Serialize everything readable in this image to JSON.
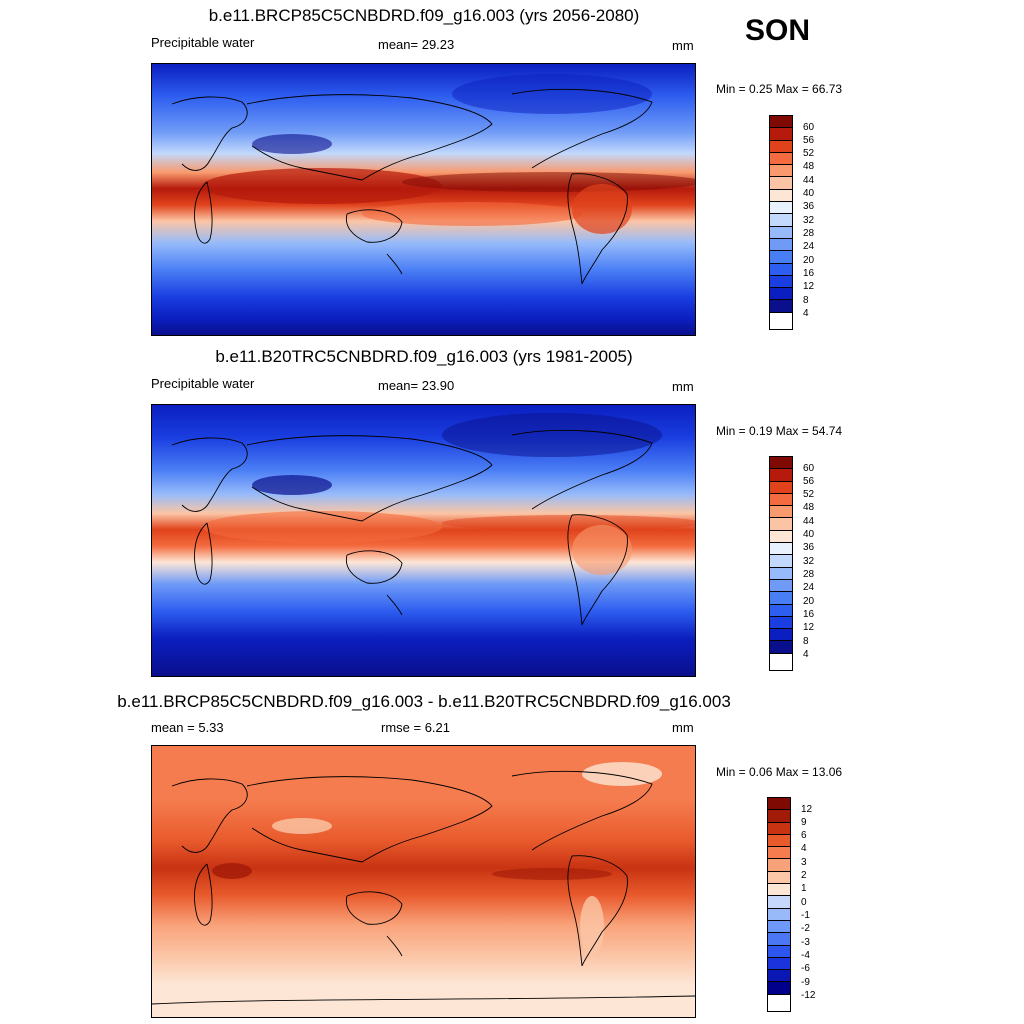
{
  "season": "SON",
  "variable": "Precipitable water",
  "units": "mm",
  "panels": [
    {
      "title": "b.e11.BRCP85C5CNBDRD.f09_g16.003 (yrs 2056-2080)",
      "mean_text": "mean=  29.23",
      "minmax_text": "Min =   0.25 Max =  66.73",
      "colorbar_labels": [
        "60",
        "56",
        "52",
        "48",
        "44",
        "40",
        "36",
        "32",
        "28",
        "24",
        "20",
        "16",
        "12",
        "8",
        "4"
      ]
    },
    {
      "title": "b.e11.B20TRC5CNBDRD.f09_g16.003 (yrs 1981-2005)",
      "mean_text": "mean=  23.90",
      "minmax_text": "Min =   0.19 Max =  54.74",
      "colorbar_labels": [
        "60",
        "56",
        "52",
        "48",
        "44",
        "40",
        "36",
        "32",
        "28",
        "24",
        "20",
        "16",
        "12",
        "8",
        "4"
      ]
    },
    {
      "title": "b.e11.BRCP85C5CNBDRD.f09_g16.003 - b.e11.B20TRC5CNBDRD.f09_g16.003",
      "mean_text": "mean =   5.33",
      "rmse_text": "rmse =   6.21",
      "minmax_text": "Min =   0.06 Max =  13.06",
      "colorbar_labels": [
        "12",
        "9",
        "6",
        "4",
        "3",
        "2",
        "1",
        "0",
        "-1",
        "-2",
        "-3",
        "-4",
        "-6",
        "-9",
        "-12"
      ]
    }
  ],
  "colors": {
    "abs_scale": [
      "#0a0f8c",
      "#0b1fc0",
      "#1a3ee0",
      "#2e5ef0",
      "#4a7ef5",
      "#6f9bf7",
      "#97bbfa",
      "#c2d8fc",
      "#e8f1fe",
      "#fde6d6",
      "#fbc5a5",
      "#f99a6e",
      "#f36b3e",
      "#e0431c",
      "#b51a0c",
      "#7f0a04"
    ],
    "diff_scale": [
      "#00008a",
      "#0a17b5",
      "#1a33dd",
      "#2f55ef",
      "#4b77f5",
      "#6f99f8",
      "#98baf9",
      "#c6d9fc",
      "#fde6d6",
      "#fbc7a8",
      "#f9a27a",
      "#f57c4e",
      "#e85a2c",
      "#c83312",
      "#a21a08",
      "#7f0a04"
    ]
  }
}
